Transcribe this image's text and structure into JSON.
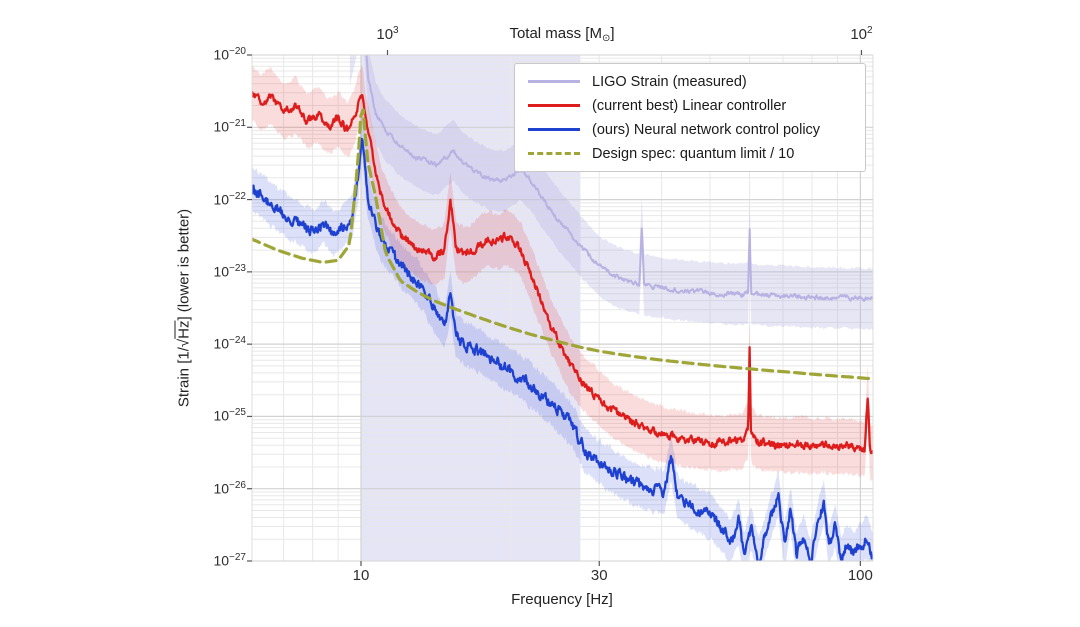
{
  "figure": {
    "xlabel": "Frequency [Hz]",
    "ylabel_pre": "Strain [1/√",
    "ylabel_overline": "Hz",
    "ylabel_post": "] (lower is better)",
    "top_label_pre": "Total mass [M",
    "top_label_sub": "⊙",
    "top_label_post": "]",
    "x_ticks": [
      {
        "value": 10,
        "label": "10"
      },
      {
        "value": 30,
        "label": "30"
      },
      {
        "value": 100,
        "label": "100"
      }
    ],
    "top_ticks": [
      {
        "freq": 11.3,
        "base": "10",
        "exp": "3"
      },
      {
        "freq": 100.5,
        "base": "10",
        "exp": "2"
      }
    ],
    "y_ticks": [
      {
        "e": -20,
        "base": "10",
        "exp": "−20"
      },
      {
        "e": -21,
        "base": "10",
        "exp": "−21"
      },
      {
        "e": -22,
        "base": "10",
        "exp": "−22"
      },
      {
        "e": -23,
        "base": "10",
        "exp": "−23"
      },
      {
        "e": -24,
        "base": "10",
        "exp": "−24"
      },
      {
        "e": -25,
        "base": "10",
        "exp": "−25"
      },
      {
        "e": -26,
        "base": "10",
        "exp": "−26"
      },
      {
        "e": -27,
        "base": "10",
        "exp": "−27"
      }
    ]
  },
  "legend": {
    "items": [
      {
        "label": "LIGO Strain (measured)",
        "color": "#b7b2e2",
        "style": "solid"
      },
      {
        "label": "(current best) Linear controller",
        "color": "#dd1c1c",
        "style": "solid"
      },
      {
        "label": "(ours) Neural network control policy",
        "color": "#1f41d0",
        "style": "solid"
      },
      {
        "label": "Design spec: quantum limit / 10",
        "color": "#9fa637",
        "style": "dashed"
      }
    ]
  },
  "chart_data": {
    "type": "line",
    "x_scale": "log",
    "y_scale": "log",
    "xlabel": "Frequency [Hz]",
    "ylabel": "Strain [1/√Hz] (lower is better)",
    "top_axis_label": "Total mass [M⊙]",
    "xlim": [
      6.05,
      106
    ],
    "ylim": [
      1e-27,
      1e-20
    ],
    "grid": true,
    "legend_position": "upper right",
    "shaded_region": {
      "x_from": 10,
      "x_to": 27.5,
      "color": "#c7c5ea",
      "opacity": 0.45
    },
    "series": [
      {
        "id": "ligo_strain",
        "name": "LIGO Strain (measured)",
        "color": "#b7b2e2",
        "band_color": "rgba(183,178,226,0.33)",
        "width": 2.0,
        "noise": 0.03,
        "seed": 3,
        "samples": 650,
        "band": 0.42,
        "points": [
          [
            9.5,
            1e-20
          ],
          [
            9.8,
            2.5e-20
          ],
          [
            10.1,
            4e-20
          ],
          [
            10.35,
            4.5e-21
          ],
          [
            10.7,
            1.6e-21
          ],
          [
            11.2,
            9e-22
          ],
          [
            12.0,
            5.5e-22
          ],
          [
            13.0,
            3.8e-22
          ],
          [
            14.2,
            3e-22
          ],
          [
            15.3,
            4.8e-22
          ],
          [
            16.0,
            3.2e-22
          ],
          [
            17.0,
            2.4e-22
          ],
          [
            18.2,
            1.9e-22
          ],
          [
            19.5,
            1.8e-22
          ],
          [
            20.8,
            2.6e-22
          ],
          [
            21.8,
            1.9e-22
          ],
          [
            23.0,
            1.1e-22
          ],
          [
            24.5,
            6e-23
          ],
          [
            26.0,
            3.6e-23
          ],
          [
            28.0,
            2e-23
          ],
          [
            30.0,
            1.2e-23
          ],
          [
            32.5,
            8.5e-24
          ],
          [
            35.0,
            7.2e-24
          ],
          [
            36.1,
            6.8e-24
          ],
          [
            36.5,
            4.5e-23
          ],
          [
            36.9,
            6.5e-24
          ],
          [
            39.0,
            6.2e-24
          ],
          [
            42.0,
            5.8e-24
          ],
          [
            46.0,
            5.4e-24
          ],
          [
            50.0,
            5.2e-24
          ],
          [
            54.0,
            5e-24
          ],
          [
            58.0,
            4.9e-24
          ],
          [
            59.6,
            5.2e-24
          ],
          [
            60.0,
            4.5e-23
          ],
          [
            60.4,
            5e-24
          ],
          [
            63.0,
            4.8e-24
          ],
          [
            67.0,
            4.7e-24
          ],
          [
            72.0,
            4.6e-24
          ],
          [
            78.0,
            4.5e-24
          ],
          [
            84.0,
            4.4e-24
          ],
          [
            90.0,
            4.4e-24
          ],
          [
            95.0,
            4.3e-24
          ],
          [
            100.0,
            4.3e-24
          ],
          [
            106.0,
            4.2e-24
          ]
        ]
      },
      {
        "id": "neural_network",
        "name": "(ours) Neural network control policy",
        "color": "#1f41d0",
        "band_color": "rgba(60,90,220,0.18)",
        "width": 2.3,
        "noise": 0.07,
        "seed": 13,
        "samples": 950,
        "band": 0.3,
        "points": [
          [
            6.0,
            1.5e-22
          ],
          [
            6.4,
            1.05e-22
          ],
          [
            6.8,
            7.5e-23
          ],
          [
            7.2,
            5.5e-23
          ],
          [
            7.6,
            4.5e-23
          ],
          [
            8.0,
            3.6e-23
          ],
          [
            8.4,
            4.8e-23
          ],
          [
            8.8,
            3.4e-23
          ],
          [
            9.2,
            4.2e-23
          ],
          [
            9.6,
            5.5e-23
          ],
          [
            9.9,
            2.2e-22
          ],
          [
            10.05,
            9e-22
          ],
          [
            10.3,
            1.2e-22
          ],
          [
            10.7,
            4.2e-23
          ],
          [
            11.2,
            2.2e-23
          ],
          [
            12.0,
            1.25e-23
          ],
          [
            13.0,
            7e-24
          ],
          [
            14.0,
            3.2e-24
          ],
          [
            14.7,
            1.6e-24
          ],
          [
            15.1,
            5e-24
          ],
          [
            15.5,
            1.3e-24
          ],
          [
            16.2,
            1e-24
          ],
          [
            17.0,
            8.5e-25
          ],
          [
            18.0,
            6.5e-25
          ],
          [
            19.0,
            5.2e-25
          ],
          [
            20.0,
            4.2e-25
          ],
          [
            21.5,
            3e-25
          ],
          [
            23.0,
            2e-25
          ],
          [
            25.0,
            1.15e-25
          ],
          [
            26.5,
            7.5e-26
          ],
          [
            28.0,
            3.5e-26
          ],
          [
            30.0,
            2.3e-26
          ],
          [
            32.5,
            1.6e-26
          ],
          [
            35.0,
            1.2e-26
          ],
          [
            38.0,
            9.5e-27
          ],
          [
            40.5,
            9e-27
          ],
          [
            41.8,
            2.6e-26
          ],
          [
            43.0,
            8e-27
          ],
          [
            45.0,
            6e-27
          ],
          [
            47.5,
            5e-27
          ],
          [
            50.0,
            4.2e-27
          ],
          [
            52.5,
            3e-27
          ],
          [
            55.0,
            1.8e-27
          ],
          [
            57.0,
            3.6e-27
          ],
          [
            58.5,
            1.3e-27
          ],
          [
            60.5,
            2.8e-27
          ],
          [
            62.5,
            1e-27
          ],
          [
            64.5,
            2.2e-27
          ],
          [
            66.5,
            4.5e-27
          ],
          [
            68.5,
            8.5e-27
          ],
          [
            70.5,
            1.6e-27
          ],
          [
            72.5,
            5.5e-27
          ],
          [
            74.5,
            1.2e-27
          ],
          [
            77.0,
            2.2e-27
          ],
          [
            79.5,
            9.5e-28
          ],
          [
            82.0,
            3e-27
          ],
          [
            84.5,
            6.5e-27
          ],
          [
            86.5,
            1.5e-27
          ],
          [
            89.0,
            3.2e-27
          ],
          [
            91.5,
            1.05e-27
          ],
          [
            94.0,
            1.7e-27
          ],
          [
            97.0,
            1.25e-27
          ],
          [
            100.0,
            1.6e-27
          ],
          [
            103.0,
            2.2e-27
          ],
          [
            106.0,
            1.1e-27
          ]
        ]
      },
      {
        "id": "linear_controller",
        "name": "(current best) Linear controller",
        "color": "#dd1c1c",
        "band_color": "rgba(225,40,40,0.16)",
        "width": 2.3,
        "noise": 0.05,
        "seed": 7,
        "samples": 950,
        "band": 0.38,
        "points": [
          [
            6.0,
            3.2e-21
          ],
          [
            6.3,
            2.2e-21
          ],
          [
            6.6,
            2.8e-21
          ],
          [
            7.0,
            1.6e-21
          ],
          [
            7.4,
            2e-21
          ],
          [
            7.8,
            1.2e-21
          ],
          [
            8.2,
            1.5e-21
          ],
          [
            8.6,
            1e-21
          ],
          [
            9.0,
            1.3e-21
          ],
          [
            9.4,
            9e-22
          ],
          [
            9.7,
            1.4e-21
          ],
          [
            9.9,
            2.4e-21
          ],
          [
            10.05,
            3e-21
          ],
          [
            10.25,
            1.1e-21
          ],
          [
            10.6,
            3.5e-22
          ],
          [
            11.0,
            1.1e-22
          ],
          [
            11.5,
            5.5e-23
          ],
          [
            12.0,
            3.2e-23
          ],
          [
            12.6,
            2.4e-23
          ],
          [
            13.2,
            1.9e-23
          ],
          [
            14.0,
            1.6e-23
          ],
          [
            14.7,
            2e-23
          ],
          [
            15.1,
            9.5e-23
          ],
          [
            15.5,
            2.2e-23
          ],
          [
            16.0,
            1.7e-23
          ],
          [
            16.6,
            1.9e-23
          ],
          [
            17.3,
            2.4e-23
          ],
          [
            18.0,
            2.9e-23
          ],
          [
            18.8,
            2.6e-23
          ],
          [
            19.5,
            3e-23
          ],
          [
            20.3,
            2.6e-23
          ],
          [
            21.0,
            1.9e-23
          ],
          [
            22.0,
            8.5e-24
          ],
          [
            23.0,
            3.8e-24
          ],
          [
            24.0,
            1.8e-24
          ],
          [
            25.0,
            1e-24
          ],
          [
            26.5,
            4.5e-25
          ],
          [
            28.0,
            2.8e-25
          ],
          [
            30.0,
            1.8e-25
          ],
          [
            32.0,
            1.2e-25
          ],
          [
            34.0,
            9.5e-26
          ],
          [
            36.0,
            7.5e-26
          ],
          [
            39.0,
            6e-26
          ],
          [
            42.0,
            5.2e-26
          ],
          [
            46.0,
            4.6e-26
          ],
          [
            50.0,
            4.3e-26
          ],
          [
            54.0,
            4.4e-26
          ],
          [
            58.0,
            4.6e-26
          ],
          [
            59.6,
            6e-26
          ],
          [
            60.0,
            9.5e-25
          ],
          [
            60.4,
            6e-26
          ],
          [
            62.0,
            4.4e-26
          ],
          [
            66.0,
            4.1e-26
          ],
          [
            70.0,
            4e-26
          ],
          [
            75.0,
            4.1e-26
          ],
          [
            80.0,
            3.9e-26
          ],
          [
            85.0,
            4e-26
          ],
          [
            90.0,
            3.8e-26
          ],
          [
            95.0,
            3.9e-26
          ],
          [
            100.0,
            3.6e-26
          ],
          [
            102.0,
            3.4e-26
          ],
          [
            103.5,
            2.1e-25
          ],
          [
            104.5,
            3.2e-26
          ],
          [
            106.0,
            3e-26
          ]
        ]
      },
      {
        "id": "design_spec",
        "name": "Design spec: quantum limit / 10",
        "color": "#9fa637",
        "band_color": null,
        "width": 3.2,
        "dash": "10 6",
        "noise": 0,
        "seed": 1,
        "samples": 260,
        "band": 0,
        "points": [
          [
            6.0,
            2.9e-23
          ],
          [
            6.8,
            2e-23
          ],
          [
            7.6,
            1.55e-23
          ],
          [
            8.4,
            1.35e-23
          ],
          [
            9.0,
            1.45e-23
          ],
          [
            9.5,
            2.4e-23
          ],
          [
            9.85,
            3e-22
          ],
          [
            10.05,
            2.7e-21
          ],
          [
            10.3,
            3.5e-22
          ],
          [
            10.7,
            1.1e-22
          ],
          [
            11.2,
            1.8e-23
          ],
          [
            12.0,
            7.5e-24
          ],
          [
            13.0,
            5.2e-24
          ],
          [
            14.0,
            4e-24
          ],
          [
            15.0,
            3.3e-24
          ],
          [
            16.5,
            2.6e-24
          ],
          [
            18.0,
            2.1e-24
          ],
          [
            20.0,
            1.65e-24
          ],
          [
            22.0,
            1.35e-24
          ],
          [
            24.0,
            1.15e-24
          ],
          [
            26.0,
            1e-24
          ],
          [
            28.0,
            8.8e-25
          ],
          [
            30.0,
            8e-25
          ],
          [
            33.0,
            7.2e-25
          ],
          [
            36.0,
            6.6e-25
          ],
          [
            40.0,
            6e-25
          ],
          [
            45.0,
            5.5e-25
          ],
          [
            50.0,
            5.1e-25
          ],
          [
            55.0,
            4.8e-25
          ],
          [
            60.0,
            4.55e-25
          ],
          [
            66.0,
            4.3e-25
          ],
          [
            72.0,
            4.1e-25
          ],
          [
            80.0,
            3.85e-25
          ],
          [
            88.0,
            3.65e-25
          ],
          [
            96.0,
            3.5e-25
          ],
          [
            106.0,
            3.3e-25
          ]
        ]
      }
    ]
  }
}
